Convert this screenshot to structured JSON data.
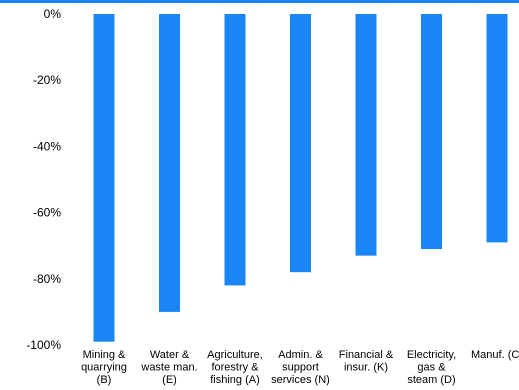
{
  "chart_data": {
    "type": "bar",
    "title": "",
    "xlabel": "",
    "ylabel": "",
    "ylim": [
      -100,
      0
    ],
    "y_ticks": [
      0,
      -20,
      -40,
      -60,
      -80,
      -100
    ],
    "y_tick_labels": [
      "0%",
      "-20%",
      "-40%",
      "-60%",
      "-80%",
      "-100%"
    ],
    "categories": [
      "Mining & quarrying (B)",
      "Water & waste man. (E)",
      "Agriculture, forestry & fishing (A)",
      "Admin. & support services (N)",
      "Financial & insur. (K)",
      "Electricity, gas & steam (D)",
      "Manuf. (C)"
    ],
    "category_label_lines": [
      [
        "Mining &",
        "quarrying",
        "(B)"
      ],
      [
        "Water &",
        "waste man.",
        "(E)"
      ],
      [
        "Agriculture,",
        "forestry &",
        "fishing (A)"
      ],
      [
        "Admin. &",
        "support",
        "services (N)"
      ],
      [
        "Financial &",
        "insur. (K)"
      ],
      [
        "Electricity,",
        "gas &",
        "steam (D)"
      ],
      [
        "Manuf. (C)"
      ]
    ],
    "values": [
      -99,
      -90,
      -82,
      -78,
      -73,
      -71,
      -69
    ],
    "bar_color": "#1a86f5",
    "grid": false,
    "legend": "none"
  }
}
